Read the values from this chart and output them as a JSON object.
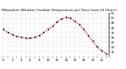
{
  "title": "Milwaukee Weather Outdoor Temperature per Hour (Last 24 Hours)",
  "hours": [
    0,
    1,
    2,
    3,
    4,
    5,
    6,
    7,
    8,
    9,
    10,
    11,
    12,
    13,
    14,
    15,
    16,
    17,
    18,
    19,
    20,
    21,
    22,
    23
  ],
  "temps": [
    38,
    35,
    33,
    31,
    30,
    29,
    29,
    30,
    32,
    35,
    38,
    42,
    46,
    49,
    51,
    50,
    47,
    43,
    38,
    32,
    26,
    20,
    16,
    13
  ],
  "line_color": "#dd0000",
  "marker_color": "#000000",
  "bg_color": "#ffffff",
  "grid_color": "#999999",
  "ylim_min": 10,
  "ylim_max": 56,
  "title_fontsize": 3.2,
  "tick_fontsize": 2.8,
  "yticks": [
    15,
    20,
    25,
    30,
    35,
    40,
    45,
    50,
    55
  ],
  "ytick_labels": [
    "15",
    "20",
    "25",
    "30",
    "35",
    "40",
    "45",
    "50",
    "55"
  ]
}
